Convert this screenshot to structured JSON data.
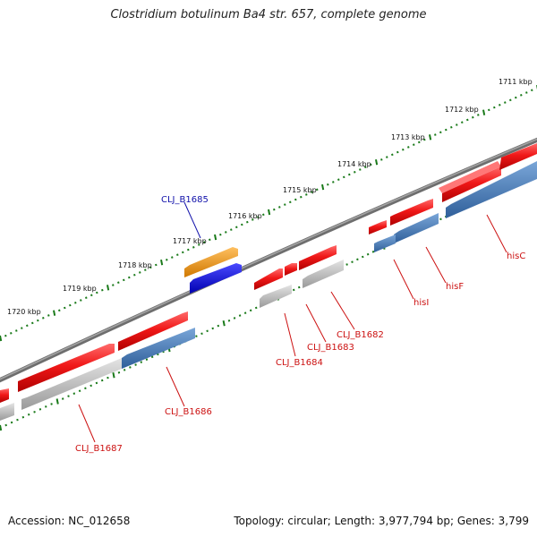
{
  "title": "Clostridium botulinum Ba4 str. 657, complete genome",
  "footer": {
    "accession": "Accession: NC_012658",
    "summary": "Topology: circular; Length: 3,977,794 bp; Genes: 3,799"
  },
  "colors": {
    "backbone": "#8a8a8a",
    "tick": "#1a7a1a",
    "gene_red": "#e8141c",
    "gene_grey": "#bdbdbd",
    "gene_steelblue": "#4a80bd",
    "gene_blue": "#1010e8",
    "gene_orange": "#f29a18",
    "label_red": "#cc1111",
    "label_blue": "#1111aa"
  },
  "scale_labels": [
    "1711 kbp",
    "1712 kbp",
    "1713 kbp",
    "1714 kbp",
    "1715 kbp",
    "1716 kbp",
    "1717 kbp",
    "1718 kbp",
    "1719 kbp",
    "1720 kbp"
  ],
  "gene_labels": [
    {
      "id": "CLJ_B1685",
      "text": "CLJ_B1685",
      "color": "blue"
    },
    {
      "id": "hisC",
      "text": "hisC",
      "color": "red"
    },
    {
      "id": "hisF",
      "text": "hisF",
      "color": "red"
    },
    {
      "id": "hisI",
      "text": "hisI",
      "color": "red"
    },
    {
      "id": "CLJ_B1682",
      "text": "CLJ_B1682",
      "color": "red"
    },
    {
      "id": "CLJ_B1683",
      "text": "CLJ_B1683",
      "color": "red"
    },
    {
      "id": "CLJ_B1684",
      "text": "CLJ_B1684",
      "color": "red"
    },
    {
      "id": "CLJ_B1686",
      "text": "CLJ_B1686",
      "color": "red"
    },
    {
      "id": "CLJ_B1687",
      "text": "CLJ_B1687",
      "color": "red"
    }
  ]
}
